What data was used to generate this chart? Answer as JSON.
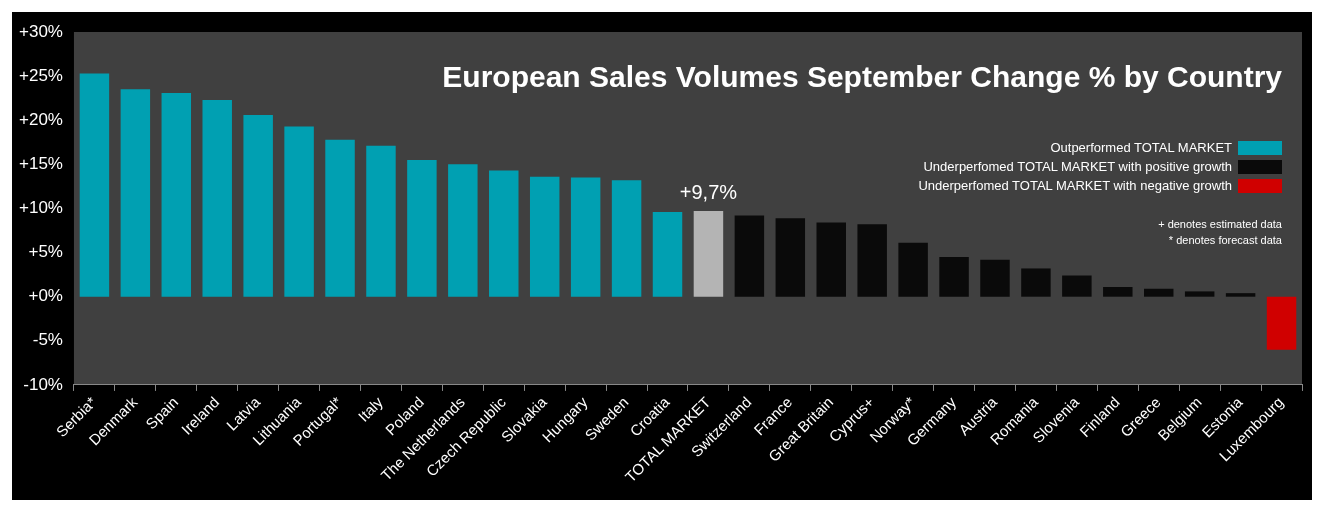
{
  "chart_data": {
    "type": "bar",
    "title": "European Sales Volumes September Change % by Country",
    "categories": [
      "Serbia*",
      "Denmark",
      "Spain",
      "Ireland",
      "Latvia",
      "Lithuania",
      "Portugal*",
      "Italy",
      "Poland",
      "The Netherlands",
      "Czech Republic",
      "Slovakia",
      "Hungary",
      "Sweden",
      "Croatia",
      "TOTAL MARKET",
      "Switzerland",
      "France",
      "Great Britain",
      "Cyprus+",
      "Norway*",
      "Germany",
      "Austria",
      "Romania",
      "Slovenia",
      "Finland",
      "Greece",
      "Belgium",
      "Estonia",
      "Luxembourg"
    ],
    "series": [
      {
        "name": "Outperformed TOTAL MARKET",
        "color": "#00a0b2",
        "values": [
          25.3,
          23.5,
          23.1,
          22.3,
          20.6,
          19.3,
          17.8,
          17.1,
          15.5,
          15.0,
          14.3,
          13.6,
          13.5,
          13.2,
          9.6,
          null,
          null,
          null,
          null,
          null,
          null,
          null,
          null,
          null,
          null,
          null,
          null,
          null,
          null,
          null
        ]
      },
      {
        "color": "#b4b4b4",
        "values": [
          null,
          null,
          null,
          null,
          null,
          null,
          null,
          null,
          null,
          null,
          null,
          null,
          null,
          null,
          null,
          9.7,
          null,
          null,
          null,
          null,
          null,
          null,
          null,
          null,
          null,
          null,
          null,
          null,
          null,
          null
        ],
        "value_labels": [
          null,
          null,
          null,
          null,
          null,
          null,
          null,
          null,
          null,
          null,
          null,
          null,
          null,
          null,
          null,
          "+9,7%",
          null,
          null,
          null,
          null,
          null,
          null,
          null,
          null,
          null,
          null,
          null,
          null,
          null,
          null
        ]
      },
      {
        "name": "Underperfomed TOTAL MARKET with positive growth",
        "color": "#0a0a0a",
        "values": [
          null,
          null,
          null,
          null,
          null,
          null,
          null,
          null,
          null,
          null,
          null,
          null,
          null,
          null,
          null,
          null,
          9.2,
          8.9,
          8.4,
          8.2,
          6.1,
          4.5,
          4.2,
          3.2,
          2.4,
          1.1,
          0.9,
          0.6,
          0.4,
          null
        ]
      },
      {
        "name": "Underperfomed TOTAL MARKET with negative growth",
        "color": "#d00000",
        "values": [
          null,
          null,
          null,
          null,
          null,
          null,
          null,
          null,
          null,
          null,
          null,
          null,
          null,
          null,
          null,
          null,
          null,
          null,
          null,
          null,
          null,
          null,
          null,
          null,
          null,
          null,
          null,
          null,
          null,
          -6.0
        ]
      }
    ],
    "ylim": [
      -10,
      30
    ],
    "yticks": [
      {
        "value": -10,
        "label": "-10%"
      },
      {
        "value": -5,
        "label": "-5%"
      },
      {
        "value": 0,
        "label": "+0%"
      },
      {
        "value": 5,
        "label": "+5%"
      },
      {
        "value": 10,
        "label": "+10%"
      },
      {
        "value": 15,
        "label": "+15%"
      },
      {
        "value": 20,
        "label": "+20%"
      },
      {
        "value": 25,
        "label": "+25%"
      },
      {
        "value": 30,
        "label": "+30%"
      }
    ],
    "legend": "top right",
    "annotations": [
      "+ denotes estimated data",
      "* denotes forecast data"
    ]
  }
}
